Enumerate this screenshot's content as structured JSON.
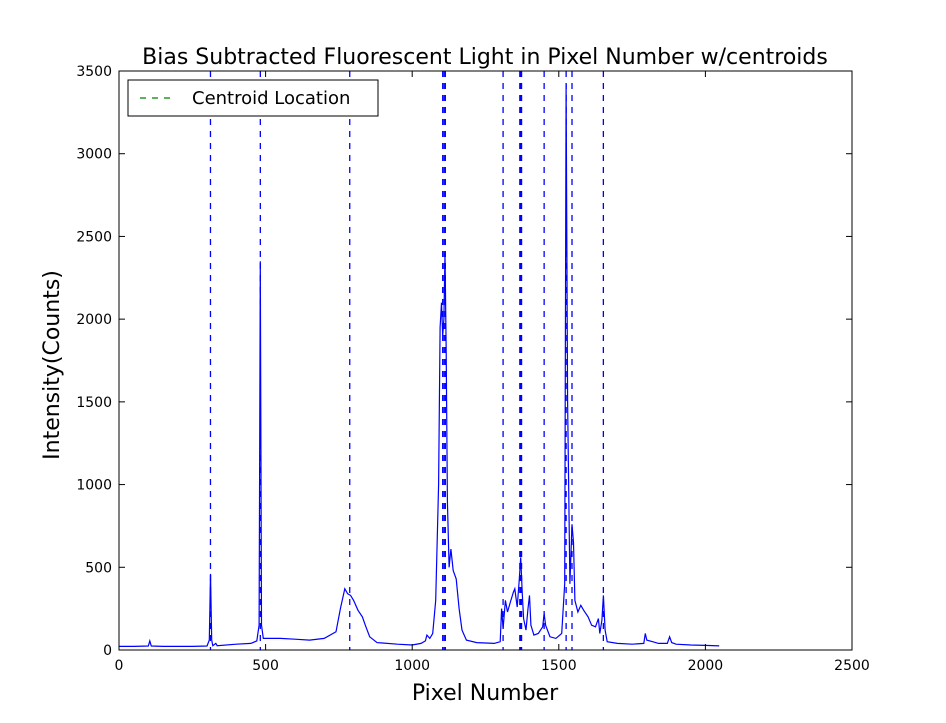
{
  "chart_data": {
    "type": "line",
    "title": "Bias Subtracted Fluorescent Light in Pixel Number w/centroids",
    "xlabel": "Pixel Number",
    "ylabel": "Intensity(Counts)",
    "xlim": [
      0,
      2500
    ],
    "ylim": [
      0,
      3500
    ],
    "xticks": [
      0,
      500,
      1000,
      1500,
      2000,
      2500
    ],
    "yticks": [
      0,
      500,
      1000,
      1500,
      2000,
      2500,
      3000,
      3500
    ],
    "grid": false,
    "legend": {
      "placement": "top-left",
      "entries": [
        "Centroid Location"
      ]
    },
    "series": [
      {
        "color": "#0000ff",
        "points": [
          [
            0,
            22
          ],
          [
            50,
            22
          ],
          [
            100,
            24
          ],
          [
            105,
            55
          ],
          [
            110,
            24
          ],
          [
            150,
            22
          ],
          [
            200,
            22
          ],
          [
            250,
            22
          ],
          [
            300,
            24
          ],
          [
            308,
            60
          ],
          [
            312,
            460
          ],
          [
            316,
            60
          ],
          [
            320,
            26
          ],
          [
            330,
            40
          ],
          [
            335,
            26
          ],
          [
            400,
            35
          ],
          [
            450,
            40
          ],
          [
            470,
            55
          ],
          [
            478,
            150
          ],
          [
            482,
            2350
          ],
          [
            486,
            150
          ],
          [
            492,
            70
          ],
          [
            500,
            70
          ],
          [
            550,
            70
          ],
          [
            600,
            65
          ],
          [
            650,
            60
          ],
          [
            700,
            70
          ],
          [
            740,
            110
          ],
          [
            755,
            250
          ],
          [
            770,
            370
          ],
          [
            780,
            340
          ],
          [
            790,
            330
          ],
          [
            800,
            300
          ],
          [
            815,
            240
          ],
          [
            830,
            200
          ],
          [
            840,
            150
          ],
          [
            855,
            80
          ],
          [
            880,
            45
          ],
          [
            950,
            35
          ],
          [
            1000,
            30
          ],
          [
            1030,
            40
          ],
          [
            1045,
            55
          ],
          [
            1050,
            90
          ],
          [
            1060,
            70
          ],
          [
            1070,
            100
          ],
          [
            1080,
            300
          ],
          [
            1090,
            1000
          ],
          [
            1095,
            1950
          ],
          [
            1100,
            2100
          ],
          [
            1104,
            1900
          ],
          [
            1108,
            2000
          ],
          [
            1112,
            2400
          ],
          [
            1116,
            1800
          ],
          [
            1120,
            900
          ],
          [
            1126,
            500
          ],
          [
            1132,
            610
          ],
          [
            1140,
            480
          ],
          [
            1150,
            430
          ],
          [
            1160,
            250
          ],
          [
            1170,
            120
          ],
          [
            1185,
            60
          ],
          [
            1220,
            45
          ],
          [
            1280,
            40
          ],
          [
            1300,
            50
          ],
          [
            1305,
            250
          ],
          [
            1310,
            130
          ],
          [
            1318,
            300
          ],
          [
            1325,
            230
          ],
          [
            1335,
            290
          ],
          [
            1345,
            350
          ],
          [
            1350,
            370
          ],
          [
            1358,
            260
          ],
          [
            1365,
            420
          ],
          [
            1370,
            560
          ],
          [
            1375,
            350
          ],
          [
            1380,
            190
          ],
          [
            1388,
            120
          ],
          [
            1395,
            250
          ],
          [
            1400,
            330
          ],
          [
            1405,
            150
          ],
          [
            1415,
            90
          ],
          [
            1430,
            100
          ],
          [
            1445,
            140
          ],
          [
            1450,
            220
          ],
          [
            1455,
            150
          ],
          [
            1470,
            80
          ],
          [
            1490,
            70
          ],
          [
            1510,
            100
          ],
          [
            1520,
            400
          ],
          [
            1525,
            3420
          ],
          [
            1530,
            1500
          ],
          [
            1538,
            400
          ],
          [
            1545,
            760
          ],
          [
            1550,
            650
          ],
          [
            1555,
            300
          ],
          [
            1565,
            230
          ],
          [
            1575,
            270
          ],
          [
            1585,
            240
          ],
          [
            1600,
            200
          ],
          [
            1612,
            150
          ],
          [
            1625,
            140
          ],
          [
            1635,
            190
          ],
          [
            1640,
            100
          ],
          [
            1647,
            180
          ],
          [
            1652,
            330
          ],
          [
            1658,
            120
          ],
          [
            1665,
            50
          ],
          [
            1700,
            40
          ],
          [
            1750,
            35
          ],
          [
            1790,
            40
          ],
          [
            1795,
            100
          ],
          [
            1800,
            60
          ],
          [
            1820,
            50
          ],
          [
            1840,
            40
          ],
          [
            1870,
            40
          ],
          [
            1878,
            80
          ],
          [
            1885,
            45
          ],
          [
            1900,
            35
          ],
          [
            1950,
            30
          ],
          [
            2000,
            28
          ],
          [
            2047,
            25
          ]
        ]
      }
    ],
    "centroids": [
      312,
      482,
      787,
      1104,
      1109,
      1113,
      1310,
      1367,
      1369,
      1371,
      1373,
      1450,
      1525,
      1545,
      1652
    ],
    "centroid_color": "#0000ff",
    "legend_color": "#008000"
  }
}
